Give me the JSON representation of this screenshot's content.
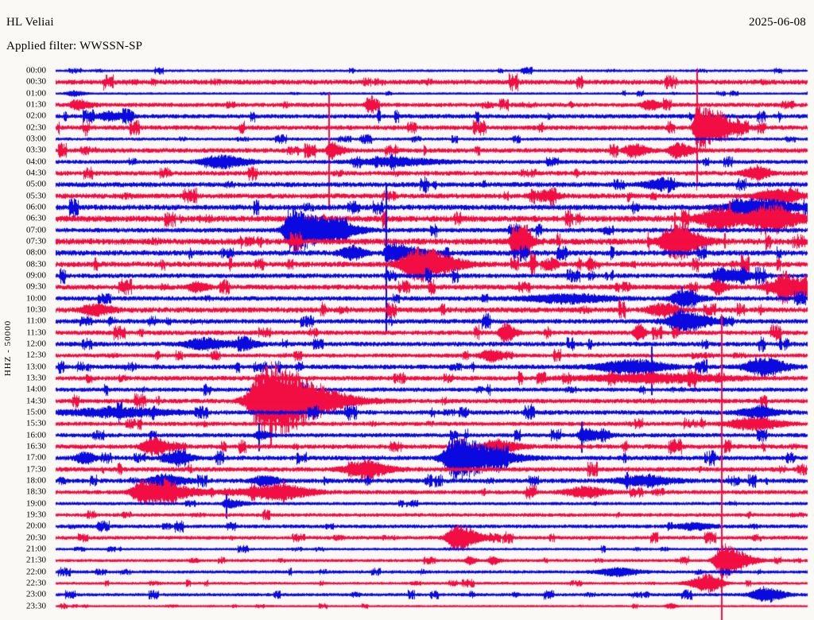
{
  "header": {
    "station": "HL Veliai",
    "date": "2025-06-08",
    "applied_filter": "Applied filter: WWSSN-SP"
  },
  "axis": {
    "left_label": "HHZ - 50000"
  },
  "chart_data": {
    "type": "line",
    "subtype": "helicorder-seismogram",
    "title": "HL Veliai",
    "date_label": "2025-06-08",
    "filter": "WWSSN-SP",
    "y_axis_label": "HHZ - 50000",
    "row_interval_minutes": 30,
    "x_range_minutes": [
      0,
      30
    ],
    "trace_color_even": "#0a0ae0",
    "trace_color_odd": "#f20d42",
    "background": "#faf9f6",
    "rows": [
      {
        "t": "00:00",
        "noise": 1.1
      },
      {
        "t": "00:30",
        "noise": 2.6
      },
      {
        "t": "01:00",
        "noise": 0.9
      },
      {
        "t": "01:30",
        "noise": 2.2
      },
      {
        "t": "02:00",
        "noise": 2.2
      },
      {
        "t": "02:30",
        "noise": 2.4
      },
      {
        "t": "03:00",
        "noise": 1.4
      },
      {
        "t": "03:30",
        "noise": 2.4
      },
      {
        "t": "04:00",
        "noise": 2.0
      },
      {
        "t": "04:30",
        "noise": 2.4
      },
      {
        "t": "05:00",
        "noise": 2.6
      },
      {
        "t": "05:30",
        "noise": 2.7
      },
      {
        "t": "06:00",
        "noise": 2.9
      },
      {
        "t": "06:30",
        "noise": 3.4
      },
      {
        "t": "07:00",
        "noise": 2.4
      },
      {
        "t": "07:30",
        "noise": 3.4
      },
      {
        "t": "08:00",
        "noise": 2.9
      },
      {
        "t": "08:30",
        "noise": 2.9
      },
      {
        "t": "09:00",
        "noise": 2.4
      },
      {
        "t": "09:30",
        "noise": 2.7
      },
      {
        "t": "10:00",
        "noise": 2.4
      },
      {
        "t": "10:30",
        "noise": 2.9
      },
      {
        "t": "11:00",
        "noise": 2.4
      },
      {
        "t": "11:30",
        "noise": 2.4
      },
      {
        "t": "12:00",
        "noise": 2.4
      },
      {
        "t": "12:30",
        "noise": 2.0
      },
      {
        "t": "13:00",
        "noise": 2.4
      },
      {
        "t": "13:30",
        "noise": 2.4
      },
      {
        "t": "14:00",
        "noise": 2.1
      },
      {
        "t": "14:30",
        "noise": 2.4
      },
      {
        "t": "15:00",
        "noise": 2.4
      },
      {
        "t": "15:30",
        "noise": 2.1
      },
      {
        "t": "16:00",
        "noise": 2.1
      },
      {
        "t": "16:30",
        "noise": 2.4
      },
      {
        "t": "17:00",
        "noise": 2.4
      },
      {
        "t": "17:30",
        "noise": 2.4
      },
      {
        "t": "18:00",
        "noise": 2.4
      },
      {
        "t": "18:30",
        "noise": 2.1
      },
      {
        "t": "19:00",
        "noise": 1.5
      },
      {
        "t": "19:30",
        "noise": 1.8
      },
      {
        "t": "20:00",
        "noise": 1.8
      },
      {
        "t": "20:30",
        "noise": 1.8
      },
      {
        "t": "21:00",
        "noise": 1.1
      },
      {
        "t": "21:30",
        "noise": 1.4
      },
      {
        "t": "22:00",
        "noise": 1.5
      },
      {
        "t": "22:30",
        "noise": 1.2
      },
      {
        "t": "23:00",
        "noise": 1.5
      },
      {
        "t": "23:30",
        "noise": 0.8
      }
    ],
    "events": [
      {
        "row": "01:00",
        "m": 0.7,
        "amp": 3,
        "rise": 0.2,
        "decay": 0.3
      },
      {
        "row": "01:30",
        "m": 0.8,
        "amp": 6,
        "rise": 0.15,
        "decay": 0.4
      },
      {
        "row": "01:30",
        "m": 12.5,
        "amp": 6,
        "rise": 0.1,
        "decay": 0.2
      },
      {
        "row": "01:30",
        "m": 23.7,
        "amp": 6,
        "rise": 0.2,
        "decay": 0.3
      },
      {
        "row": "02:00",
        "m": 2.1,
        "amp": 5,
        "rise": 0.3,
        "decay": 0.5
      },
      {
        "row": "02:30",
        "m": 25.6,
        "type": "spike",
        "up": 55,
        "down": 55
      },
      {
        "row": "02:30",
        "m": 25.6,
        "amp": 26,
        "rise": 0.1,
        "decay": 0.9
      },
      {
        "row": "03:30",
        "m": 10.9,
        "type": "spike",
        "up": 66,
        "down": 66
      },
      {
        "row": "03:30",
        "m": 10.9,
        "amp": 10,
        "rise": 0.06,
        "decay": 0.35
      },
      {
        "row": "03:30",
        "m": 23.0,
        "amp": 8,
        "rise": 0.2,
        "decay": 0.4
      },
      {
        "row": "03:30",
        "m": 24.8,
        "amp": 9,
        "rise": 0.2,
        "decay": 0.4
      },
      {
        "row": "04:00",
        "m": 6.6,
        "amp": 8,
        "rise": 0.5,
        "decay": 0.7
      },
      {
        "row": "04:00",
        "m": 13.5,
        "amp": 5,
        "rise": 1.0,
        "decay": 1.2
      },
      {
        "row": "04:30",
        "m": 27.9,
        "amp": 7,
        "rise": 0.3,
        "decay": 0.4
      },
      {
        "row": "05:00",
        "m": 24.0,
        "amp": 5,
        "rise": 0.4,
        "decay": 0.5
      },
      {
        "row": "05:30",
        "m": 19.5,
        "amp": 6,
        "rise": 0.3,
        "decay": 0.4
      },
      {
        "row": "05:30",
        "m": 28.7,
        "amp": 8,
        "rise": 0.5,
        "decay": 0.7
      },
      {
        "row": "06:00",
        "m": 28.0,
        "amp": 10,
        "rise": 0.8,
        "decay": 1.1
      },
      {
        "row": "06:30",
        "m": 26.5,
        "amp": 13,
        "rise": 0.6,
        "decay": 0.6
      },
      {
        "row": "06:30",
        "m": 26.9,
        "type": "spike",
        "up": 22,
        "down": 8
      },
      {
        "row": "06:30",
        "m": 28.4,
        "amp": 15,
        "rise": 0.5,
        "decay": 0.9
      },
      {
        "row": "07:00",
        "m": 9.4,
        "amp": 27,
        "rise": 0.2,
        "decay": 1.0
      },
      {
        "row": "07:00",
        "m": 11.2,
        "amp": 8,
        "rise": 0.4,
        "decay": 0.7
      },
      {
        "row": "07:30",
        "m": 18.3,
        "amp": 20,
        "rise": 0.1,
        "decay": 0.45
      },
      {
        "row": "07:30",
        "m": 24.7,
        "amp": 20,
        "rise": 0.35,
        "decay": 0.7
      },
      {
        "row": "07:30",
        "m": 24.7,
        "type": "spike",
        "up": 36,
        "down": 12
      },
      {
        "row": "07:30",
        "m": 26.7,
        "type": "spike",
        "up": 10,
        "down": 8
      },
      {
        "row": "08:00",
        "m": 11.8,
        "amp": 8,
        "rise": 0.3,
        "decay": 0.35
      },
      {
        "row": "08:00",
        "m": 13.2,
        "type": "spike",
        "up": 80,
        "down": 92
      },
      {
        "row": "08:00",
        "m": 13.2,
        "amp": 12,
        "rise": 0.06,
        "decay": 0.9
      },
      {
        "row": "08:30",
        "m": 14.5,
        "amp": 20,
        "rise": 0.5,
        "decay": 1.0
      },
      {
        "row": "08:30",
        "m": 19.0,
        "amp": 6,
        "rise": 0.08,
        "decay": 0.12
      },
      {
        "row": "08:30",
        "m": 19.9,
        "amp": 6,
        "rise": 0.08,
        "decay": 0.12
      },
      {
        "row": "08:30",
        "m": 21.3,
        "amp": 5,
        "rise": 0.08,
        "decay": 0.12
      },
      {
        "row": "09:00",
        "m": 27.0,
        "amp": 7,
        "rise": 0.5,
        "decay": 0.6
      },
      {
        "row": "09:30",
        "m": 5.6,
        "amp": 6,
        "rise": 0.2,
        "decay": 0.3
      },
      {
        "row": "09:30",
        "m": 26.4,
        "amp": 9,
        "rise": 0.15,
        "decay": 0.25
      },
      {
        "row": "09:30",
        "m": 29.2,
        "amp": 13,
        "rise": 0.5,
        "decay": 0.8
      },
      {
        "row": "10:00",
        "m": 20.5,
        "amp": 5,
        "rise": 1.2,
        "decay": 1.2
      },
      {
        "row": "10:00",
        "m": 25.0,
        "amp": 9,
        "rise": 0.3,
        "decay": 0.5
      },
      {
        "row": "10:00",
        "m": 25.0,
        "type": "spike",
        "up": 14,
        "down": 6
      },
      {
        "row": "10:30",
        "m": 1.5,
        "amp": 7,
        "rise": 0.3,
        "decay": 0.5
      },
      {
        "row": "10:30",
        "m": 22.5,
        "type": "spike",
        "up": 12,
        "down": 6
      },
      {
        "row": "10:30",
        "m": 24.1,
        "amp": 7,
        "rise": 0.3,
        "decay": 0.5
      },
      {
        "row": "11:00",
        "m": 24.9,
        "amp": 14,
        "rise": 0.3,
        "decay": 0.8
      },
      {
        "row": "11:00",
        "m": 24.9,
        "type": "spike",
        "up": 8,
        "down": 16
      },
      {
        "row": "11:30",
        "m": 17.9,
        "amp": 12,
        "rise": 0.12,
        "decay": 0.3
      },
      {
        "row": "11:30",
        "m": 23.2,
        "amp": 8,
        "rise": 0.1,
        "decay": 0.2
      },
      {
        "row": "12:00",
        "m": 5.9,
        "amp": 7,
        "rise": 0.5,
        "decay": 0.6
      },
      {
        "row": "12:00",
        "m": 7.5,
        "amp": 6,
        "rise": 0.3,
        "decay": 0.4
      },
      {
        "row": "12:30",
        "m": 17.4,
        "amp": 7,
        "rise": 0.3,
        "decay": 0.4
      },
      {
        "row": "13:00",
        "m": 23.0,
        "amp": 9,
        "rise": 0.9,
        "decay": 0.9
      },
      {
        "row": "13:00",
        "m": 23.8,
        "type": "spike",
        "up": 25,
        "down": 35
      },
      {
        "row": "13:00",
        "m": 28.3,
        "amp": 11,
        "rise": 0.5,
        "decay": 0.6
      },
      {
        "row": "13:30",
        "m": 24.0,
        "amp": 5,
        "rise": 2.0,
        "decay": 2.0
      },
      {
        "row": "14:30",
        "m": 8.4,
        "amp": 45,
        "rise": 0.45,
        "decay": 1.7
      },
      {
        "row": "14:30",
        "m": 8.6,
        "type": "spike",
        "up": 20,
        "down": 58
      },
      {
        "row": "15:00",
        "m": 2.5,
        "amp": 5,
        "rise": 1.5,
        "decay": 1.5
      },
      {
        "row": "15:00",
        "m": 28.0,
        "amp": 6,
        "rise": 0.5,
        "decay": 0.6
      },
      {
        "row": "15:30",
        "m": 27.8,
        "amp": 8,
        "rise": 0.6,
        "decay": 0.8
      },
      {
        "row": "16:00",
        "m": 8.1,
        "type": "spike",
        "up": 10,
        "down": 15
      },
      {
        "row": "16:00",
        "m": 8.1,
        "amp": 5,
        "rise": 0.1,
        "decay": 0.3
      },
      {
        "row": "16:00",
        "m": 21.0,
        "type": "spike",
        "up": 9,
        "down": 16
      },
      {
        "row": "16:00",
        "m": 21.0,
        "amp": 8,
        "rise": 0.1,
        "decay": 0.6
      },
      {
        "row": "16:30",
        "m": 3.8,
        "amp": 10,
        "rise": 0.25,
        "decay": 0.55
      },
      {
        "row": "16:30",
        "m": 17.6,
        "amp": 8,
        "rise": 0.4,
        "decay": 0.6
      },
      {
        "row": "17:00",
        "m": 1.1,
        "amp": 7,
        "rise": 0.2,
        "decay": 0.3
      },
      {
        "row": "17:00",
        "m": 4.9,
        "amp": 7,
        "rise": 0.3,
        "decay": 0.4
      },
      {
        "row": "17:00",
        "m": 15.9,
        "amp": 25,
        "rise": 0.3,
        "decay": 1.3
      },
      {
        "row": "17:30",
        "m": 12.3,
        "amp": 10,
        "rise": 0.5,
        "decay": 0.7
      },
      {
        "row": "18:00",
        "m": 4.3,
        "amp": 7,
        "rise": 0.4,
        "decay": 0.6
      },
      {
        "row": "18:00",
        "m": 8.3,
        "amp": 6,
        "rise": 0.3,
        "decay": 0.4
      },
      {
        "row": "18:00",
        "m": 23.5,
        "amp": 6,
        "rise": 0.7,
        "decay": 0.8
      },
      {
        "row": "18:30",
        "m": 3.4,
        "amp": 15,
        "rise": 0.25,
        "decay": 1.3
      },
      {
        "row": "18:30",
        "m": 8.9,
        "amp": 9,
        "rise": 1.0,
        "decay": 0.9
      },
      {
        "row": "18:30",
        "m": 9.1,
        "type": "spike",
        "up": 14,
        "down": 14
      },
      {
        "row": "18:30",
        "m": 21.1,
        "amp": 7,
        "rise": 0.5,
        "decay": 0.6
      },
      {
        "row": "19:00",
        "m": 6.8,
        "type": "spike",
        "up": 8,
        "down": 14
      },
      {
        "row": "19:00",
        "m": 6.8,
        "amp": 5,
        "rise": 0.1,
        "decay": 0.5
      },
      {
        "row": "20:00",
        "m": 25.5,
        "amp": 4,
        "rise": 0.5,
        "decay": 0.5
      },
      {
        "row": "20:30",
        "m": 16.0,
        "amp": 17,
        "rise": 0.25,
        "decay": 0.6
      },
      {
        "row": "21:30",
        "m": 16.5,
        "amp": 5,
        "rise": 0.1,
        "decay": 0.2
      },
      {
        "row": "21:30",
        "m": 17.4,
        "amp": 5,
        "rise": 0.1,
        "decay": 0.2
      },
      {
        "row": "21:30",
        "m": 26.6,
        "type": "spike",
        "up": 297,
        "down": 65
      },
      {
        "row": "21:30",
        "m": 26.6,
        "amp": 20,
        "rise": 0.2,
        "decay": 0.7
      },
      {
        "row": "22:00",
        "m": 22.4,
        "amp": 5,
        "rise": 0.5,
        "decay": 0.6
      },
      {
        "row": "22:30",
        "m": 26.1,
        "amp": 11,
        "rise": 0.5,
        "decay": 0.35
      },
      {
        "row": "23:00",
        "m": 28.3,
        "amp": 10,
        "rise": 0.35,
        "decay": 0.5
      },
      {
        "row": "23:30",
        "m": 24.5,
        "amp": 3,
        "rise": 0.1,
        "decay": 0.2
      }
    ]
  }
}
